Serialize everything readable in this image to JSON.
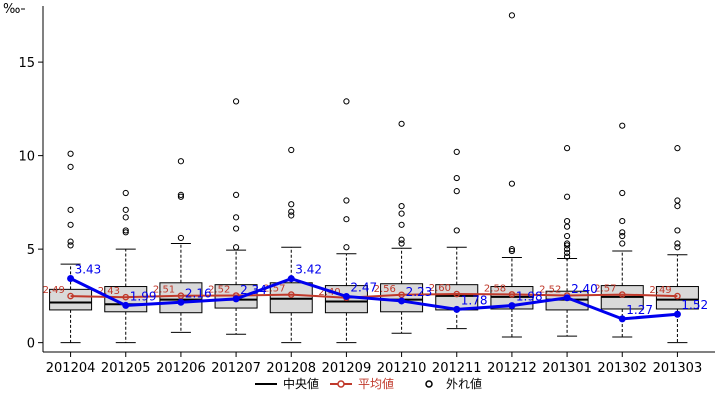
{
  "chart_data": {
    "type": "boxplot",
    "y_unit_label": "‰",
    "ylim": [
      -0.5,
      18
    ],
    "y_ticks": [
      0,
      5,
      10,
      15
    ],
    "categories": [
      "201204",
      "201205",
      "201206",
      "201207",
      "201208",
      "201209",
      "201210",
      "201211",
      "201212",
      "201301",
      "201302",
      "201303"
    ],
    "boxes": [
      {
        "min": 0.0,
        "q1": 1.75,
        "median": 2.15,
        "q3": 2.85,
        "max": 4.2,
        "mean": 2.49,
        "outliers": [
          5.2,
          5.4,
          6.3,
          7.1,
          9.4,
          10.1
        ]
      },
      {
        "min": 0.0,
        "q1": 1.65,
        "median": 2.05,
        "q3": 3.0,
        "max": 5.0,
        "mean": 2.43,
        "outliers": [
          5.9,
          6.0,
          6.7,
          7.1,
          8.0
        ]
      },
      {
        "min": 0.55,
        "q1": 1.6,
        "median": 2.3,
        "q3": 3.2,
        "max": 5.3,
        "mean": 2.51,
        "outliers": [
          5.6,
          7.8,
          7.9,
          9.7
        ]
      },
      {
        "min": 0.45,
        "q1": 1.85,
        "median": 2.3,
        "q3": 3.1,
        "max": 4.95,
        "mean": 2.52,
        "outliers": [
          5.1,
          6.1,
          6.7,
          7.9,
          12.9
        ]
      },
      {
        "min": 0.0,
        "q1": 1.6,
        "median": 2.35,
        "q3": 3.2,
        "max": 5.1,
        "mean": 2.57,
        "outliers": [
          6.8,
          7.0,
          7.4,
          10.3
        ]
      },
      {
        "min": 0.0,
        "q1": 1.6,
        "median": 2.2,
        "q3": 3.05,
        "max": 4.75,
        "mean": 2.4,
        "outliers": [
          5.1,
          6.6,
          7.6,
          12.9
        ]
      },
      {
        "min": 0.5,
        "q1": 1.65,
        "median": 2.3,
        "q3": 3.15,
        "max": 5.05,
        "mean": 2.56,
        "outliers": [
          5.3,
          5.5,
          6.3,
          6.9,
          7.3,
          11.7
        ]
      },
      {
        "min": 0.75,
        "q1": 1.75,
        "median": 2.5,
        "q3": 3.1,
        "max": 5.1,
        "mean": 2.6,
        "outliers": [
          6.0,
          8.1,
          8.8,
          10.2
        ]
      },
      {
        "min": 0.3,
        "q1": 1.8,
        "median": 2.45,
        "q3": 3.0,
        "max": 4.55,
        "mean": 2.58,
        "outliers": [
          4.9,
          5.0,
          8.5,
          17.5
        ]
      },
      {
        "min": 0.35,
        "q1": 1.75,
        "median": 2.3,
        "q3": 2.75,
        "max": 4.5,
        "mean": 2.52,
        "outliers": [
          4.6,
          4.8,
          5.0,
          5.2,
          5.3,
          5.7,
          6.2,
          6.5,
          7.8,
          10.4
        ]
      },
      {
        "min": 0.3,
        "q1": 1.8,
        "median": 2.45,
        "q3": 3.05,
        "max": 4.9,
        "mean": 2.57,
        "outliers": [
          5.3,
          5.7,
          5.9,
          6.5,
          8.0,
          11.6
        ]
      },
      {
        "min": 0.0,
        "q1": 1.8,
        "median": 2.3,
        "q3": 3.0,
        "max": 4.7,
        "mean": 2.49,
        "outliers": [
          5.1,
          5.3,
          6.0,
          7.3,
          7.6,
          10.4
        ]
      }
    ],
    "mean_labels": [
      "2.49",
      "2.43",
      "2.51",
      "2.52",
      "2.57",
      "2.40",
      "2.56",
      "2.60",
      "2.58",
      "2.52",
      "2.57",
      "2.49"
    ],
    "line_series": {
      "values": [
        3.43,
        1.99,
        2.16,
        2.34,
        3.42,
        2.47,
        2.23,
        1.78,
        1.98,
        2.4,
        1.27,
        1.52
      ],
      "labels": [
        "3.43",
        "1.99",
        "2.16",
        "2.34",
        "3.42",
        "2.47",
        "2.23",
        "1.78",
        "1.98",
        "2.40",
        "1.27",
        "1.52"
      ],
      "color": "#0000ee"
    },
    "colors": {
      "box_fill": "#d9d9d9",
      "median": "#000000",
      "mean": "#c0392b",
      "line": "#0000ee"
    },
    "legend": {
      "placement": "bottom",
      "items": [
        {
          "key": "median",
          "label": "中央値"
        },
        {
          "key": "mean",
          "label": "平均値"
        },
        {
          "key": "outlier",
          "label": "外れ値"
        }
      ]
    },
    "grid": false
  }
}
